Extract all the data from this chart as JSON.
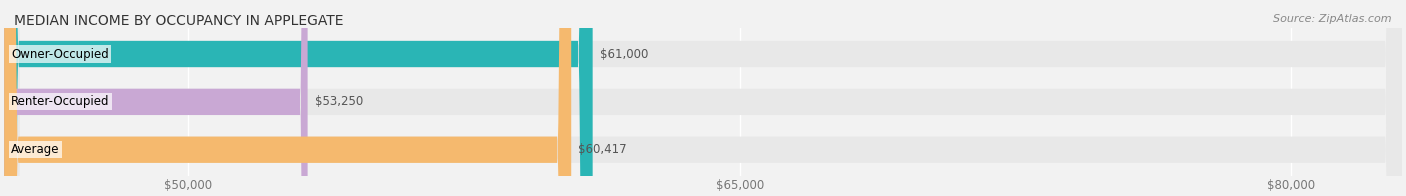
{
  "title": "MEDIAN INCOME BY OCCUPANCY IN APPLEGATE",
  "source": "Source: ZipAtlas.com",
  "categories": [
    "Owner-Occupied",
    "Renter-Occupied",
    "Average"
  ],
  "values": [
    61000,
    53250,
    60417
  ],
  "bar_colors": [
    "#2ab5b5",
    "#c9a8d4",
    "#f5b96e"
  ],
  "value_labels": [
    "$61,000",
    "$53,250",
    "$60,417"
  ],
  "xlim": [
    45000,
    83000
  ],
  "xticks": [
    50000,
    65000,
    80000
  ],
  "xticklabels": [
    "$50,000",
    "$65,000",
    "$80,000"
  ],
  "bar_height": 0.55,
  "background_color": "#f2f2f2",
  "bar_bg_color": "#e8e8e8",
  "title_fontsize": 10,
  "source_fontsize": 8,
  "label_fontsize": 8.5,
  "tick_fontsize": 8.5
}
